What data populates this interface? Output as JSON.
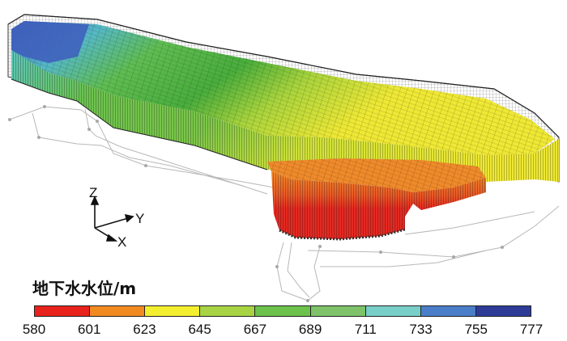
{
  "legend": {
    "title": "地下水水位/m",
    "ticks": [
      "580",
      "601",
      "623",
      "645",
      "667",
      "689",
      "711",
      "733",
      "755",
      "777"
    ],
    "colors": [
      "#e8221c",
      "#f28a22",
      "#f4ef2e",
      "#a8d444",
      "#6cc24a",
      "#7ec36a",
      "#78cfc8",
      "#4a7ec8",
      "#2e3c98"
    ]
  },
  "axes": {
    "z": "Z",
    "y": "Y",
    "x": "X"
  },
  "model_colors": {
    "red": "#e42a22",
    "orange": "#ef8a2a",
    "yellow": "#efe834",
    "yellowgreen": "#bfdc3c",
    "green": "#5fbf45",
    "teal": "#5cc5bc",
    "blue": "#3f6fc2",
    "mesh": "#3a3a3a"
  }
}
